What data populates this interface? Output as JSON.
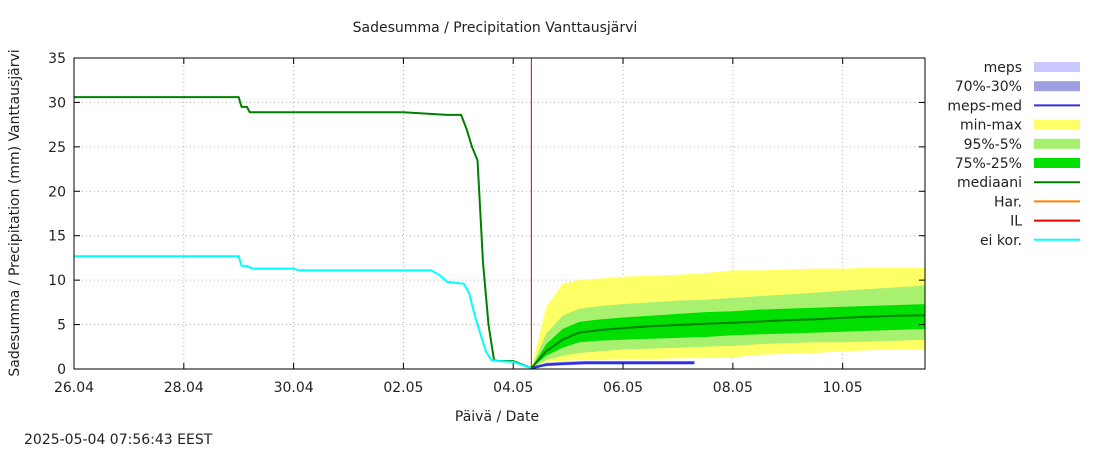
{
  "chart_data": {
    "type": "area",
    "title": "Sadesumma / Precipitation  Vanttausjärvi",
    "ylabel": "Sadesumma / Precipitation (mm)  Vanttausjärvi",
    "xlabel": "Päivä / Date",
    "timestamp": "2025-05-04 07:56:43 EEST",
    "xlim": [
      0,
      15.5
    ],
    "ylim": [
      0,
      35
    ],
    "yticks": [
      0,
      5,
      10,
      15,
      20,
      25,
      30,
      35
    ],
    "xticks": [
      {
        "x": 0,
        "label": "26.04"
      },
      {
        "x": 2,
        "label": "28.04"
      },
      {
        "x": 4,
        "label": "30.04"
      },
      {
        "x": 6,
        "label": "02.05"
      },
      {
        "x": 8,
        "label": "04.05"
      },
      {
        "x": 10,
        "label": "06.05"
      },
      {
        "x": 12,
        "label": "08.05"
      },
      {
        "x": 14,
        "label": "10.05"
      }
    ],
    "now_x": 8.33,
    "legend": [
      {
        "label": "meps",
        "kind": "band",
        "color": "#c8c8ff"
      },
      {
        "label": "70%-30%",
        "kind": "band",
        "color": "#a0a0e0"
      },
      {
        "label": "meps-med",
        "kind": "line",
        "color": "#3030e0"
      },
      {
        "label": "min-max",
        "kind": "band",
        "color": "#ffff66"
      },
      {
        "label": "95%-5%",
        "kind": "band",
        "color": "#a8f070"
      },
      {
        "label": "75%-25%",
        "kind": "band",
        "color": "#00e000"
      },
      {
        "label": "mediaani",
        "kind": "line",
        "color": "#008000"
      },
      {
        "label": "Har.",
        "kind": "line",
        "color": "#ff8000"
      },
      {
        "label": "IL",
        "kind": "line",
        "color": "#e00000"
      },
      {
        "label": "ei kor.",
        "kind": "line",
        "color": "#00ffff"
      }
    ],
    "series": [
      {
        "name": "mediaani-observed",
        "color": "#008000",
        "x": [
          0,
          3.0,
          3.05,
          3.15,
          3.2,
          6.0,
          6.8,
          7.05,
          7.15,
          7.25,
          7.35,
          7.45,
          7.55,
          7.65,
          7.72,
          7.8,
          8.0,
          8.33
        ],
        "y": [
          30.6,
          30.6,
          29.5,
          29.5,
          28.9,
          28.9,
          28.6,
          28.6,
          27.0,
          25.0,
          23.5,
          12.0,
          5.0,
          1.0,
          0.9,
          0.9,
          0.9,
          0.1
        ]
      },
      {
        "name": "ei kor.",
        "color": "#00ffff",
        "x": [
          0,
          3.0,
          3.05,
          3.15,
          3.25,
          4.0,
          4.1,
          6.5,
          6.65,
          6.8,
          7.1,
          7.2,
          7.3,
          7.4,
          7.5,
          7.6,
          7.7,
          8.0,
          8.33
        ],
        "y": [
          12.7,
          12.7,
          11.6,
          11.6,
          11.3,
          11.3,
          11.1,
          11.1,
          10.6,
          9.8,
          9.6,
          8.5,
          6.0,
          4.0,
          2.0,
          1.0,
          0.9,
          0.8,
          0.1
        ]
      },
      {
        "name": "meps-med",
        "color": "#3030e0",
        "x": [
          8.33,
          8.6,
          8.9,
          9.3,
          11.3
        ],
        "y": [
          0.1,
          0.5,
          0.6,
          0.7,
          0.7
        ]
      },
      {
        "name": "mediaani-forecast",
        "color": "#008000",
        "x": [
          8.33,
          8.6,
          8.9,
          9.2,
          9.6,
          10.0,
          10.5,
          11.0,
          11.5,
          12.0,
          12.5,
          13.0,
          13.5,
          14.0,
          14.5,
          15.0,
          15.5
        ],
        "y": [
          0.1,
          2.0,
          3.3,
          4.1,
          4.4,
          4.6,
          4.8,
          4.95,
          5.1,
          5.2,
          5.35,
          5.5,
          5.6,
          5.75,
          5.9,
          6.0,
          6.05
        ]
      }
    ],
    "bands": [
      {
        "name": "min-max",
        "color": "#ffff66",
        "x": [
          8.33,
          8.6,
          8.9,
          9.2,
          9.6,
          10.0,
          10.5,
          11.0,
          11.5,
          12.0,
          12.5,
          13.0,
          13.5,
          14.0,
          14.5,
          15.0,
          15.5
        ],
        "lower": [
          0.1,
          0.8,
          0.9,
          1.0,
          1.0,
          1.1,
          1.1,
          1.2,
          1.2,
          1.3,
          1.6,
          1.7,
          1.8,
          2.0,
          2.1,
          2.2,
          2.2
        ],
        "upper": [
          0.1,
          7.0,
          9.6,
          10.0,
          10.2,
          10.4,
          10.5,
          10.6,
          10.8,
          11.1,
          11.1,
          11.2,
          11.3,
          11.3,
          11.4,
          11.4,
          11.4
        ]
      },
      {
        "name": "95%-5%",
        "color": "#a8f070",
        "x": [
          8.33,
          8.6,
          8.9,
          9.2,
          9.6,
          10.0,
          10.5,
          11.0,
          11.5,
          12.0,
          12.5,
          13.0,
          13.5,
          14.0,
          14.5,
          15.0,
          15.5
        ],
        "lower": [
          0.1,
          1.0,
          1.5,
          1.8,
          2.0,
          2.2,
          2.3,
          2.4,
          2.5,
          2.6,
          2.8,
          2.9,
          3.0,
          3.0,
          3.1,
          3.2,
          3.3
        ],
        "upper": [
          0.1,
          4.0,
          6.0,
          6.8,
          7.1,
          7.3,
          7.5,
          7.7,
          7.8,
          8.0,
          8.2,
          8.4,
          8.6,
          8.8,
          9.0,
          9.2,
          9.4
        ]
      },
      {
        "name": "75%-25%",
        "color": "#00e000",
        "x": [
          8.33,
          8.6,
          8.9,
          9.2,
          9.6,
          10.0,
          10.5,
          11.0,
          11.5,
          12.0,
          12.5,
          13.0,
          13.5,
          14.0,
          14.5,
          15.0,
          15.5
        ],
        "lower": [
          0.1,
          1.5,
          2.4,
          3.0,
          3.2,
          3.3,
          3.4,
          3.5,
          3.6,
          3.8,
          3.9,
          4.0,
          4.1,
          4.2,
          4.3,
          4.4,
          4.5
        ],
        "upper": [
          0.1,
          2.8,
          4.5,
          5.3,
          5.6,
          5.8,
          6.0,
          6.2,
          6.4,
          6.5,
          6.7,
          6.8,
          6.9,
          7.0,
          7.1,
          7.2,
          7.3
        ]
      },
      {
        "name": "70%-30%",
        "color": "#a0a0e0",
        "x": [
          8.33,
          8.6,
          8.9,
          9.3,
          11.3
        ],
        "lower": [
          0.1,
          0.3,
          0.4,
          0.5,
          0.5
        ],
        "upper": [
          0.1,
          0.7,
          0.8,
          0.9,
          0.9
        ]
      }
    ]
  }
}
